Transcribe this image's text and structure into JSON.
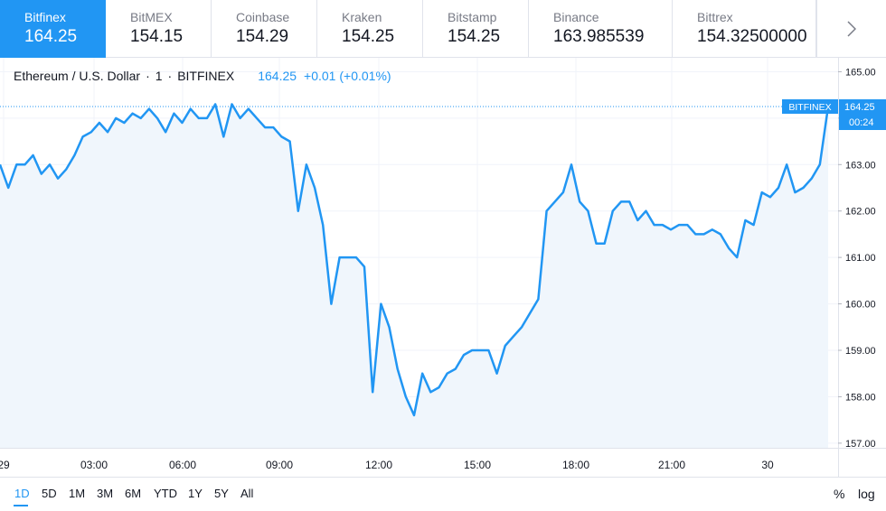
{
  "exchanges": [
    {
      "name": "Bitfinex",
      "price": "164.25"
    },
    {
      "name": "BitMEX",
      "price": "154.15"
    },
    {
      "name": "Coinbase",
      "price": "154.29"
    },
    {
      "name": "Kraken",
      "price": "154.25"
    },
    {
      "name": "Bitstamp",
      "price": "154.25"
    },
    {
      "name": "Binance",
      "price": "163.985539"
    },
    {
      "name": "Bittrex",
      "price": "154.32500000"
    }
  ],
  "next_icon": "chevron-right-icon",
  "legend": {
    "symbol": "Ethereum / U.S. Dollar",
    "interval": "1",
    "exchange": "BITFINEX",
    "price": "164.25",
    "change": "+0.01 (+0.01%)",
    "sep": "·"
  },
  "ranges": [
    "1D",
    "5D",
    "1M",
    "3M",
    "6M",
    "YTD",
    "1Y",
    "5Y",
    "All"
  ],
  "active_range": "1D",
  "toggles": {
    "percent": "%",
    "log": "log"
  },
  "colors": {
    "accent": "#2196f3",
    "area": "#f0f6fc"
  },
  "chart_data": {
    "type": "area",
    "series": [
      {
        "values": [
          163.0,
          162.5,
          163.0,
          163.0,
          163.2,
          162.8,
          163.0,
          162.7,
          162.9,
          163.2,
          163.6,
          163.7,
          163.9,
          163.7,
          164.0,
          163.9,
          164.1,
          164.0,
          164.2,
          164.0,
          163.7,
          164.1,
          163.9,
          164.2,
          164.0,
          164.0,
          164.3,
          163.6,
          164.3,
          164.0,
          164.2,
          164.0,
          163.8,
          163.8,
          163.6,
          163.5,
          162.0,
          163.0,
          162.5,
          161.7,
          160.0,
          161.0,
          161.0,
          161.0,
          160.8,
          158.1,
          160.0,
          159.5,
          158.6,
          158.0,
          157.6,
          158.5,
          158.1,
          158.2,
          158.5,
          158.6,
          158.9,
          159.0,
          159.0,
          159.0,
          158.5,
          159.1,
          159.3,
          159.5,
          159.8,
          160.1,
          162.0,
          162.2,
          162.4,
          163.0,
          162.2,
          162.0,
          161.3,
          161.3,
          162.0,
          162.2,
          162.2,
          161.8,
          162.0,
          161.7,
          161.7,
          161.6,
          161.7,
          161.7,
          161.5,
          161.5,
          161.6,
          161.5,
          161.2,
          161.0,
          161.8,
          161.7,
          162.4,
          162.3,
          162.5,
          163.0,
          162.4,
          162.5,
          162.7,
          163.0,
          164.25
        ]
      }
    ],
    "x_ticks": [
      "29",
      "03:00",
      "06:00",
      "09:00",
      "12:00",
      "15:00",
      "18:00",
      "21:00",
      "30"
    ],
    "y_ticks": [
      "157.00",
      "158.00",
      "159.00",
      "160.00",
      "161.00",
      "162.00",
      "163.00",
      "164.00",
      "165.00"
    ],
    "ylim": [
      156.9,
      165.3
    ],
    "price_label": {
      "exchange": "BITFINEX",
      "value": "164.25",
      "countdown": "00:24"
    }
  }
}
